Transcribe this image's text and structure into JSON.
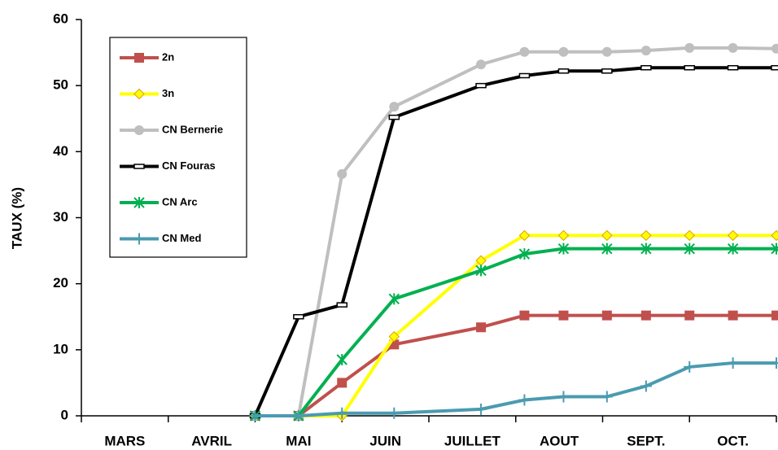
{
  "chart_data": {
    "type": "line",
    "ylabel": "TAUX (%)",
    "categories": [
      "MARS",
      "AVRIL",
      "MAI",
      "JUIN",
      "JUILLET",
      "AOUT",
      "SEPT.",
      "OCT."
    ],
    "xlim": [
      0,
      8
    ],
    "x": [
      2,
      2.5,
      3,
      3.6,
      4.6,
      5.1,
      5.55,
      6.05,
      6.5,
      7,
      7.5,
      8
    ],
    "ylim": [
      0,
      60
    ],
    "yticks": [
      0,
      10,
      20,
      30,
      40,
      50,
      60
    ],
    "legend": "upper left",
    "series": [
      {
        "name": "2n",
        "color": "#c0504d",
        "marker": "square",
        "values": [
          0,
          0,
          5,
          10.8,
          13.4,
          15.2,
          15.2,
          15.2,
          15.2,
          15.2,
          15.2,
          15.2
        ]
      },
      {
        "name": "3n",
        "color": "#ffff00",
        "marker": "diamond",
        "values": [
          0,
          0,
          0,
          12,
          23.5,
          27.3,
          27.3,
          27.3,
          27.3,
          27.3,
          27.3,
          27.3
        ]
      },
      {
        "name": "CN Bernerie",
        "color": "#bfbfbf",
        "marker": "circle",
        "values": [
          0,
          0,
          36.6,
          46.8,
          53.2,
          55.1,
          55.1,
          55.1,
          55.3,
          55.7,
          55.7,
          55.6
        ]
      },
      {
        "name": "CN Fouras",
        "color": "#000000",
        "marker": "dash",
        "values": [
          0,
          15,
          16.8,
          45.2,
          50,
          51.5,
          52.2,
          52.2,
          52.7,
          52.7,
          52.7,
          52.7
        ]
      },
      {
        "name": "CN Arc",
        "color": "#00b050",
        "marker": "star",
        "values": [
          0,
          0,
          8.5,
          17.7,
          22,
          24.5,
          25.3,
          25.3,
          25.3,
          25.3,
          25.3,
          25.3
        ]
      },
      {
        "name": "CN Med",
        "color": "#4a9bb0",
        "marker": "plus",
        "values": [
          0,
          0,
          0.4,
          0.4,
          1,
          2.4,
          2.9,
          2.9,
          4.5,
          7.4,
          8,
          8
        ]
      }
    ]
  }
}
